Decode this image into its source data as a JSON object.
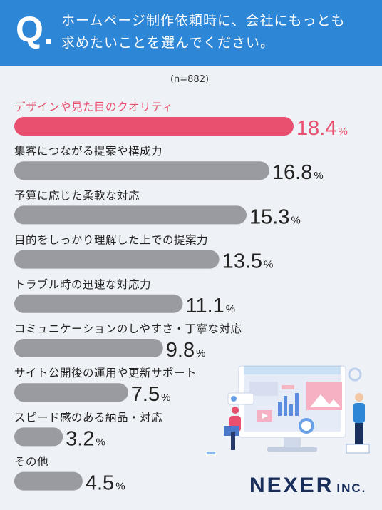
{
  "question": {
    "mark": "Q",
    "line1": "ホームページ制作依頼時に、会社にもっとも",
    "line2": "求めたいことを選んでください。"
  },
  "sample_note": "(n=882)",
  "brand": {
    "name": "NEXER",
    "suffix": "INC."
  },
  "colors": {
    "header": "#2e86d6",
    "highlight": "#e9506f",
    "bar": "#9a9ba1",
    "background": "#eef2f6"
  },
  "chart_data": {
    "type": "bar",
    "orientation": "horizontal",
    "unit": "%",
    "categories": [
      "デザインや見た目のクオリティ",
      "集客につながる提案や構成力",
      "予算に応じた柔軟な対応",
      "目的をしっかり理解した上での提案力",
      "トラブル時の迅速な対応力",
      "コミュニケーションのしやすさ・丁寧な対応",
      "サイト公開後の運用や更新サポート",
      "スピード感のある納品・対応",
      "その他"
    ],
    "values": [
      18.4,
      16.8,
      15.3,
      13.5,
      11.1,
      9.8,
      7.5,
      3.2,
      4.5
    ],
    "labels": [
      "18.4",
      "16.8",
      "15.3",
      "13.5",
      "11.1",
      "9.8",
      "7.5",
      "3.2",
      "4.5"
    ],
    "highlight_index": 0
  }
}
